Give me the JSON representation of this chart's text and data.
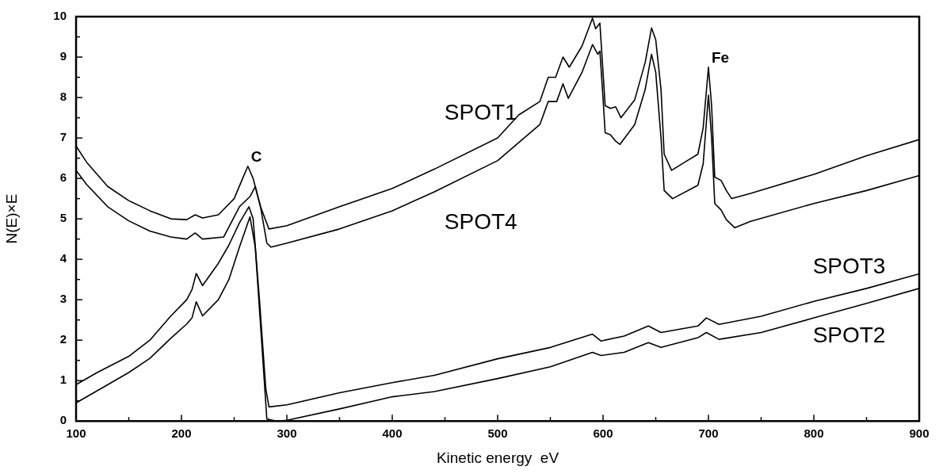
{
  "chart_data": {
    "type": "line",
    "xlabel": "Kinetic energy  eV",
    "ylabel": "N(E)×E",
    "xlim": [
      100,
      900
    ],
    "xticks": [
      100,
      {
        "value": 150,
        "label": null
      },
      200,
      {
        "value": 250,
        "label": null
      },
      300,
      {
        "value": 350,
        "label": null
      },
      400,
      {
        "value": 450,
        "label": null
      },
      500,
      {
        "value": 550,
        "label": null
      },
      600,
      {
        "value": 650,
        "label": null
      },
      700,
      {
        "value": 750,
        "label": null
      },
      800,
      {
        "value": 850,
        "label": null
      },
      900
    ],
    "ylim": [
      0,
      10
    ],
    "yticks": [
      0,
      {
        "value": 0.5,
        "label": null
      },
      1,
      {
        "value": 1.5,
        "label": null
      },
      2,
      {
        "value": 2.5,
        "label": null
      },
      3,
      {
        "value": 3.5,
        "label": null
      },
      4,
      {
        "value": 4.5,
        "label": null
      },
      5,
      {
        "value": 5.5,
        "label": null
      },
      6,
      {
        "value": 6.5,
        "label": null
      },
      7,
      {
        "value": 7.5,
        "label": null
      },
      8,
      {
        "value": 8.5,
        "label": null
      },
      9,
      {
        "value": 9.5,
        "label": null
      },
      10
    ],
    "grid": false,
    "legend": false,
    "marker": "none",
    "line_style": "solid",
    "annotations": [
      {
        "text": "C",
        "x": 263,
        "y": 6.3
      },
      {
        "text": "Fe",
        "x": 700,
        "y": 8.75
      }
    ],
    "series": [
      {
        "name": "SPOT1",
        "color": "#000000",
        "x": [
          100,
          110,
          130,
          150,
          170,
          190,
          205,
          213,
          220,
          235,
          250,
          258,
          263,
          268,
          275,
          283,
          300,
          350,
          400,
          440,
          500,
          520,
          540,
          548,
          555,
          562,
          568,
          580,
          590,
          593,
          597,
          600,
          602,
          607,
          612,
          617,
          630,
          640,
          646,
          650,
          655,
          658,
          665,
          680,
          690,
          695,
          700,
          703,
          706,
          712,
          717,
          722,
          740,
          800,
          850,
          900
        ],
        "values": [
          6.8,
          6.4,
          5.8,
          5.45,
          5.2,
          5.0,
          4.98,
          5.1,
          5.02,
          5.1,
          5.5,
          6.0,
          6.3,
          6.0,
          5.3,
          4.75,
          4.83,
          5.3,
          5.75,
          6.23,
          7.0,
          7.57,
          7.9,
          8.5,
          8.5,
          9.0,
          8.75,
          9.27,
          9.96,
          9.7,
          9.84,
          8.62,
          7.8,
          7.73,
          7.77,
          7.5,
          7.94,
          8.87,
          9.72,
          9.43,
          8.2,
          6.6,
          6.2,
          6.44,
          6.6,
          7.25,
          8.75,
          7.8,
          6.03,
          5.95,
          5.7,
          5.5,
          5.63,
          6.1,
          6.56,
          6.96
        ]
      },
      {
        "name": "SPOT4",
        "color": "#000000",
        "x": [
          100,
          110,
          130,
          150,
          170,
          190,
          205,
          213,
          220,
          240,
          255,
          265,
          270,
          275,
          281,
          285,
          300,
          350,
          400,
          440,
          500,
          540,
          548,
          556,
          562,
          567,
          580,
          590,
          595,
          597,
          600,
          602,
          607,
          612,
          616,
          630,
          640,
          646,
          650,
          655,
          658,
          666,
          690,
          695,
          700,
          703,
          706,
          712,
          717,
          725,
          740,
          800,
          850,
          900
        ],
        "values": [
          6.2,
          5.85,
          5.3,
          4.95,
          4.7,
          4.55,
          4.5,
          4.65,
          4.5,
          4.55,
          5.3,
          5.55,
          5.8,
          5.3,
          4.4,
          4.3,
          4.4,
          4.75,
          5.2,
          5.67,
          6.44,
          7.33,
          7.9,
          7.9,
          8.34,
          7.98,
          8.62,
          9.31,
          9.07,
          9.15,
          7.98,
          7.13,
          7.08,
          6.92,
          6.84,
          7.33,
          8.2,
          9.07,
          8.62,
          7.0,
          5.7,
          5.5,
          5.83,
          6.36,
          8.06,
          7.0,
          5.38,
          5.22,
          4.98,
          4.78,
          4.94,
          5.38,
          5.7,
          6.07
        ]
      },
      {
        "name": "SPOT3",
        "color": "#000000",
        "x": [
          100,
          120,
          150,
          170,
          190,
          205,
          210,
          214,
          220,
          235,
          245,
          255,
          264,
          268,
          274,
          280,
          283,
          300,
          350,
          400,
          440,
          500,
          550,
          590,
          598,
          620,
          643,
          655,
          690,
          698,
          710,
          750,
          800,
          850,
          900
        ],
        "values": [
          0.9,
          1.2,
          1.6,
          2.0,
          2.6,
          3.0,
          3.25,
          3.65,
          3.35,
          3.9,
          4.35,
          4.9,
          5.3,
          5.0,
          3.0,
          0.8,
          0.35,
          0.4,
          0.7,
          0.95,
          1.13,
          1.54,
          1.82,
          2.15,
          1.98,
          2.1,
          2.35,
          2.19,
          2.35,
          2.55,
          2.39,
          2.59,
          2.96,
          3.28,
          3.64
        ]
      },
      {
        "name": "SPOT2",
        "color": "#000000",
        "x": [
          100,
          120,
          150,
          170,
          190,
          205,
          210,
          214,
          220,
          235,
          245,
          255,
          265,
          270,
          276,
          281,
          290,
          300,
          350,
          400,
          440,
          500,
          550,
          590,
          598,
          620,
          643,
          655,
          690,
          698,
          710,
          750,
          800,
          850,
          900
        ],
        "values": [
          0.45,
          0.75,
          1.2,
          1.55,
          2.05,
          2.4,
          2.55,
          2.95,
          2.6,
          3.0,
          3.5,
          4.3,
          5.05,
          4.3,
          2.0,
          0.05,
          0,
          0.02,
          0.3,
          0.6,
          0.73,
          1.05,
          1.34,
          1.7,
          1.62,
          1.7,
          1.94,
          1.82,
          2.06,
          2.19,
          2.02,
          2.19,
          2.55,
          2.91,
          3.28
        ]
      }
    ]
  }
}
